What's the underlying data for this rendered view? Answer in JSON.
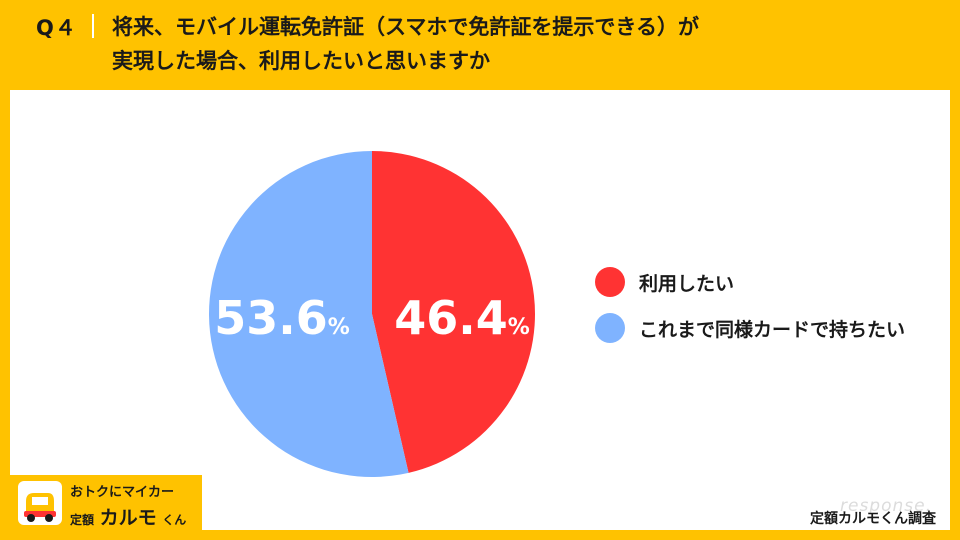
{
  "header": {
    "question_no": "Q４",
    "title_line1": "将来、モバイル運転免許証（スマホで免許証を提示できる）が",
    "title_line2": "実現した場合、利用したいと思いますか"
  },
  "chart_data": {
    "type": "pie",
    "slices": [
      {
        "label": "利用したい",
        "value": 46.4,
        "display": "46.4",
        "color": "#ff3333"
      },
      {
        "label": "これまで同様カードで持ちたい",
        "value": 53.6,
        "display": "53.6",
        "color": "#7fb3ff"
      }
    ],
    "unit": "%",
    "start": "12 o'clock, clockwise",
    "legend_position": "right"
  },
  "badge": {
    "line1": "おトクにマイカー",
    "line2_small": "定額",
    "line2_big": "カルモ",
    "line2_tail": "くん"
  },
  "footer": {
    "survey": "定額カルモくん調査",
    "watermark": "response."
  }
}
